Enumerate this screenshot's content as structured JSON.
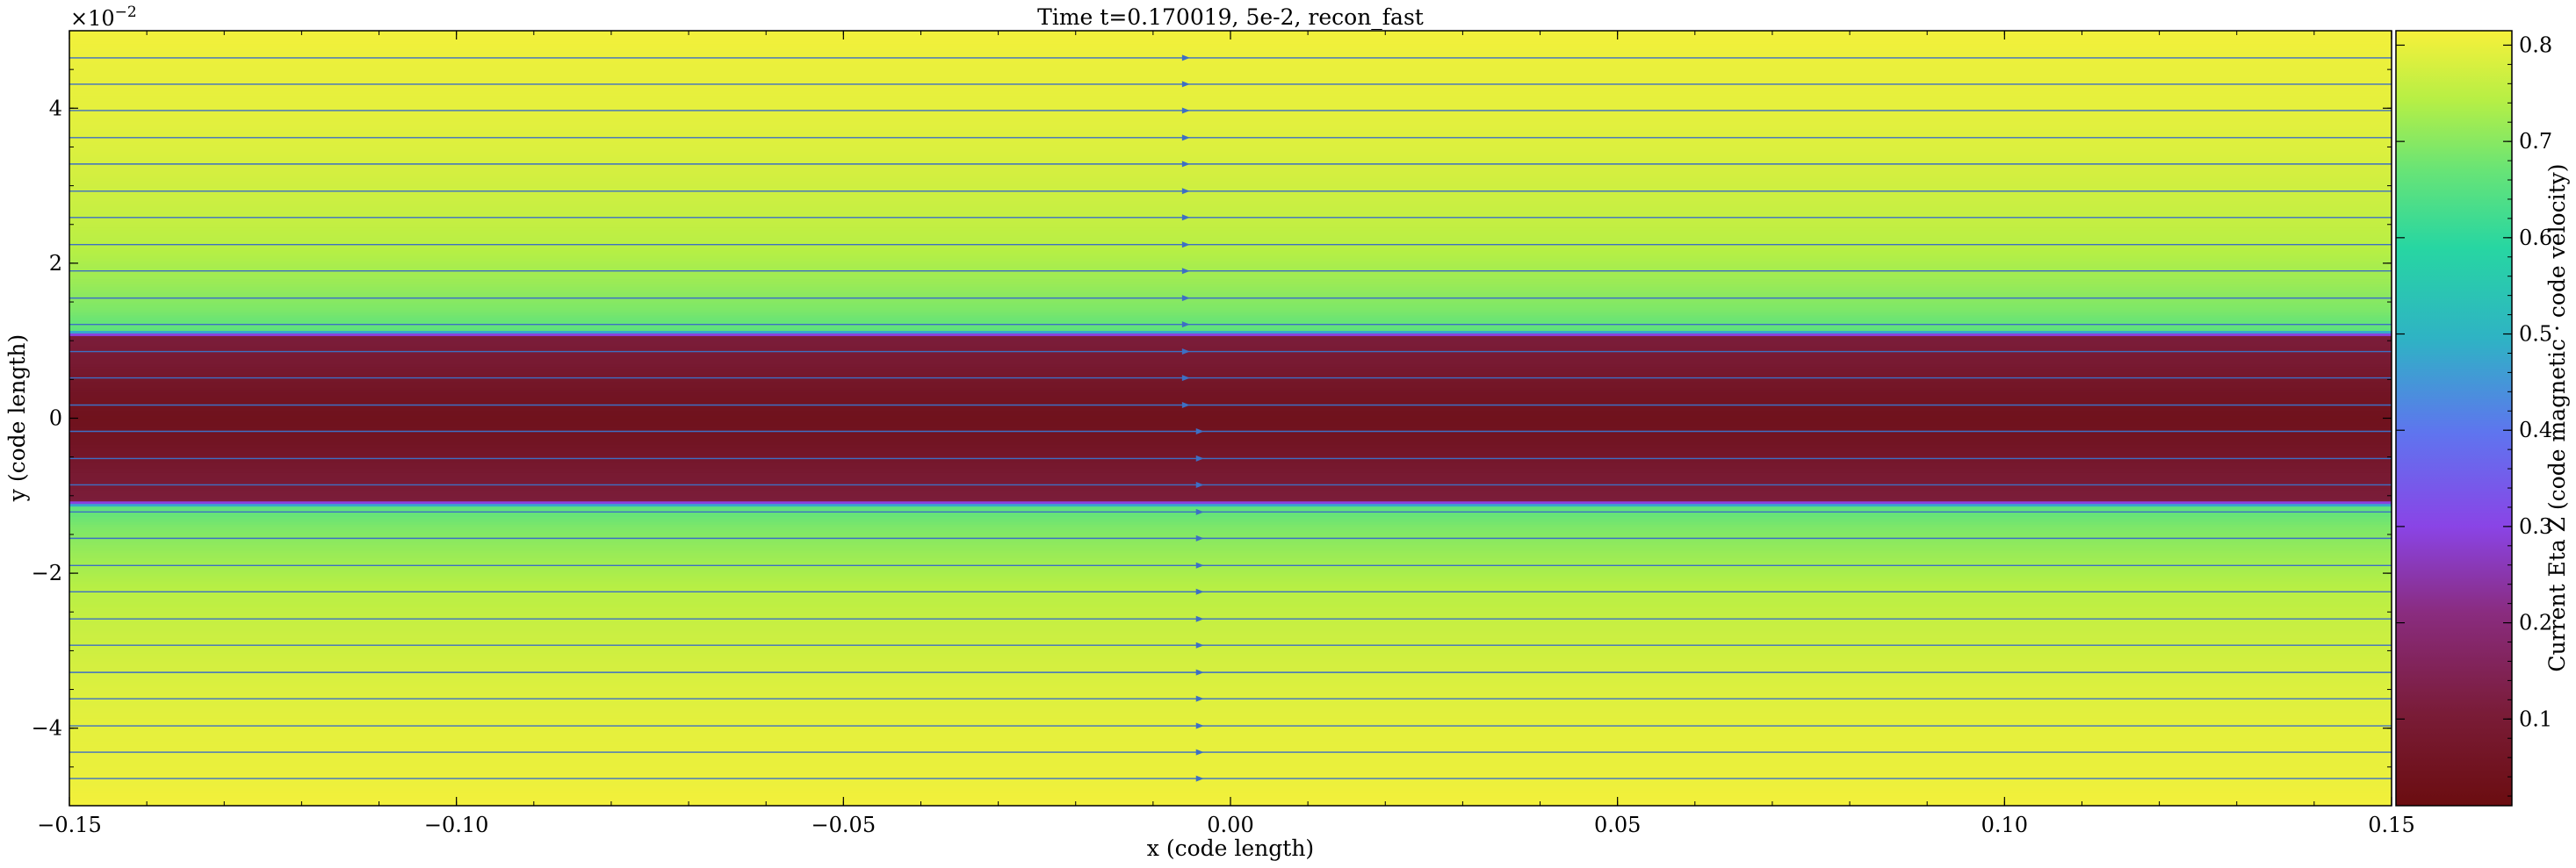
{
  "chart_data": {
    "type": "heatmap",
    "title": "Time t=0.170019, 5e-2, recon_fast",
    "xlabel": "x  (code length)",
    "ylabel": "y  (code length)",
    "y_multiplier": "×10",
    "y_multiplier_exp": "−2",
    "xlim": [
      -0.15,
      0.15
    ],
    "ylim": [
      -0.05,
      0.05
    ],
    "x_ticks": [
      -0.15,
      -0.1,
      -0.05,
      0.0,
      0.05,
      0.1,
      0.15
    ],
    "x_tick_labels": [
      "−0.15",
      "−0.10",
      "−0.05",
      "0.00",
      "0.05",
      "0.10",
      "0.15"
    ],
    "y_ticks": [
      -0.04,
      -0.02,
      0.0,
      0.02,
      0.04
    ],
    "y_tick_labels": [
      "−4",
      "−2",
      "0",
      "2",
      "4"
    ],
    "colorbar": {
      "label": "Current Eta Z  (code magnetic · code velocity)",
      "range": [
        0.01,
        0.815
      ],
      "ticks": [
        0.1,
        0.2,
        0.3,
        0.4,
        0.5,
        0.6,
        0.7,
        0.8
      ],
      "tick_labels": [
        "0.1",
        "0.2",
        "0.3",
        "0.4",
        "0.5",
        "0.6",
        "0.7",
        "0.8"
      ],
      "colormap": "custom yellow-green-teal-blue-purple-darkred"
    },
    "field_profile": {
      "description_bands": "value vs y (symmetric about y=0)",
      "y": [
        0.0,
        0.0035,
        0.007,
        0.0105,
        0.0115,
        0.0125,
        0.014,
        0.018,
        0.022,
        0.026,
        0.03,
        0.035,
        0.04,
        0.045,
        0.05
      ],
      "value": [
        0.04,
        0.06,
        0.09,
        0.11,
        0.66,
        0.67,
        0.69,
        0.72,
        0.745,
        0.76,
        0.77,
        0.785,
        0.795,
        0.8,
        0.81
      ]
    },
    "streamlines": {
      "y_positions": [
        0.0465,
        0.0431,
        0.0397,
        0.0362,
        0.0328,
        0.0293,
        0.0259,
        0.0224,
        0.019,
        0.0155,
        0.0121,
        0.0086,
        0.0052,
        0.0017,
        -0.0017,
        -0.0052,
        -0.0086,
        -0.0121,
        -0.0155,
        -0.019,
        -0.0224,
        -0.0259,
        -0.0293,
        -0.0328,
        -0.0362,
        -0.0397,
        -0.0431,
        -0.0465
      ],
      "arrow_x_upper": -0.0058,
      "arrow_x_lower": -0.004,
      "line_color": "#3d6fc4"
    },
    "grid": false,
    "legend": "none"
  }
}
